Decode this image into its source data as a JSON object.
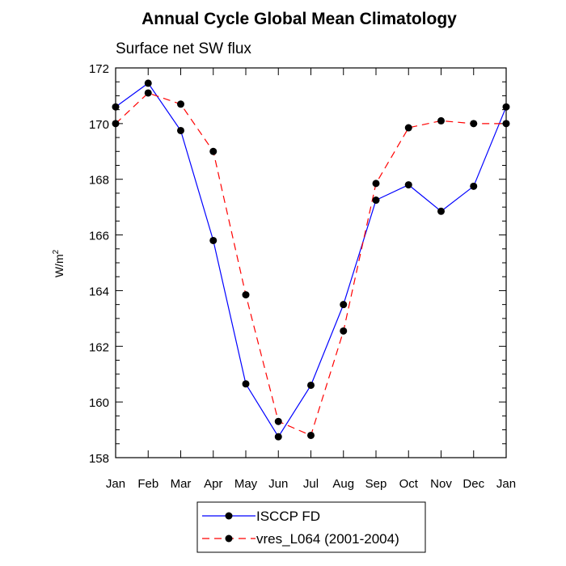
{
  "chart_data": {
    "type": "line",
    "title": "Annual Cycle Global Mean Climatology",
    "subtitle": "Surface net SW flux",
    "xlabel": "",
    "ylabel": "W/m",
    "ylabel_superscript": "2",
    "categories": [
      "Jan",
      "Feb",
      "Mar",
      "Apr",
      "May",
      "Jun",
      "Jul",
      "Aug",
      "Sep",
      "Oct",
      "Nov",
      "Dec",
      "Jan"
    ],
    "ylim": [
      158,
      172
    ],
    "yticks": [
      158,
      160,
      162,
      164,
      166,
      168,
      170,
      172
    ],
    "series": [
      {
        "name": "ISCCP FD",
        "color": "#0000ff",
        "dash": "solid",
        "values": [
          170.6,
          171.45,
          169.75,
          165.8,
          160.65,
          158.75,
          160.6,
          163.5,
          167.25,
          167.8,
          166.85,
          167.75,
          170.6
        ]
      },
      {
        "name": "vres_L064 (2001-2004)",
        "color": "#ff0000",
        "dash": "dashed",
        "values": [
          170.0,
          171.1,
          170.7,
          169.0,
          163.85,
          159.3,
          158.8,
          162.55,
          167.85,
          169.85,
          170.1,
          170.0,
          170.0
        ]
      }
    ]
  }
}
